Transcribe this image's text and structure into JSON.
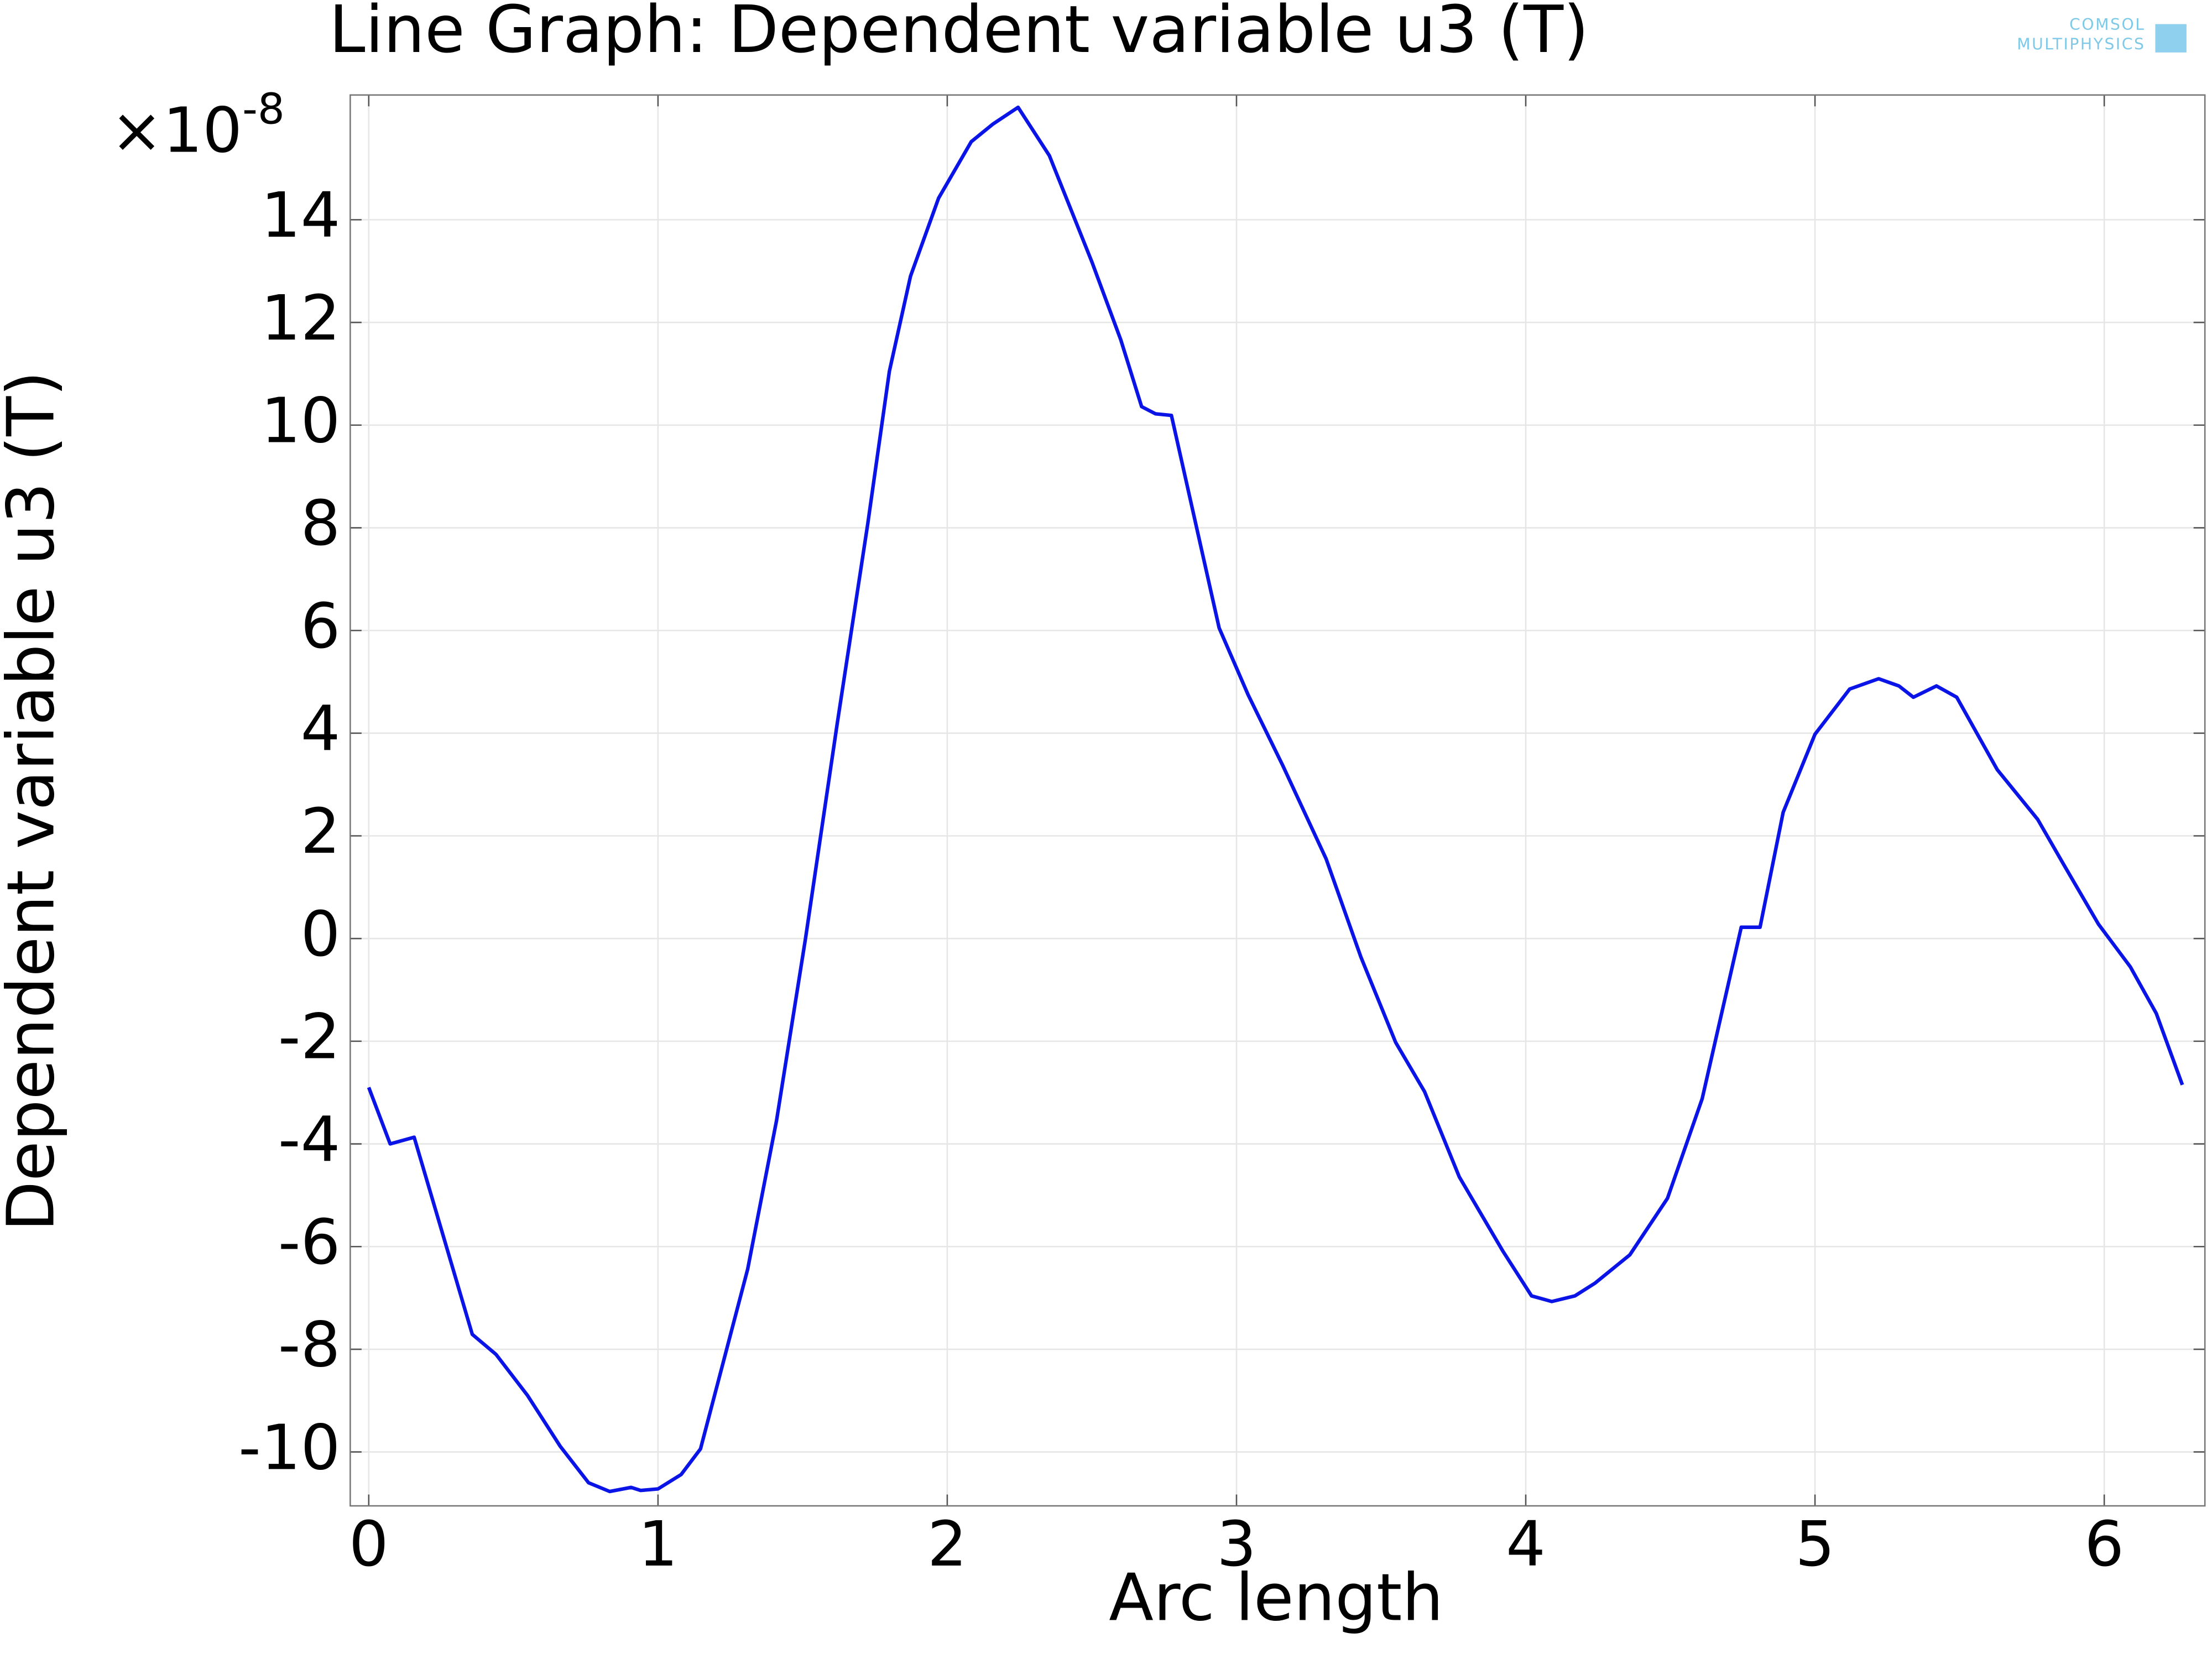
{
  "chart_data": {
    "type": "line",
    "title": "Line Graph: Dependent variable u3 (T)",
    "logo": {
      "line1": "COMSOL",
      "line2": "MULTIPHYSICS"
    },
    "x_label": "Arc length",
    "y_label": "Dependent variable u3 (T)",
    "y_multiplier": {
      "base": "×10",
      "exponent": "-8"
    },
    "x": [
      0,
      0.074,
      0.157,
      0.358,
      0.44,
      0.549,
      0.662,
      0.76,
      0.833,
      0.907,
      0.94,
      1.0,
      1.08,
      1.147,
      1.31,
      1.41,
      1.51,
      1.62,
      1.725,
      1.8,
      1.873,
      1.97,
      2.083,
      2.157,
      2.245,
      2.353,
      2.5,
      2.6,
      2.672,
      2.72,
      2.775,
      2.94,
      3.04,
      3.16,
      3.31,
      3.43,
      3.55,
      3.65,
      3.77,
      3.92,
      4.02,
      4.09,
      4.17,
      4.24,
      4.36,
      4.49,
      4.61,
      4.745,
      4.81,
      4.89,
      5.0,
      5.12,
      5.22,
      5.29,
      5.34,
      5.42,
      5.49,
      5.63,
      5.77,
      5.86,
      5.98,
      6.09,
      6.18,
      6.27
    ],
    "series": [
      {
        "name": "u3",
        "color": "#0a14e6",
        "values": [
          -2.9,
          -4.0,
          -3.87,
          -7.71,
          -8.1,
          -8.9,
          -9.89,
          -10.6,
          -10.77,
          -10.69,
          -10.75,
          -10.72,
          -10.44,
          -9.94,
          -6.44,
          -3.54,
          0,
          4.2,
          8.07,
          11.05,
          12.9,
          14.42,
          15.52,
          15.86,
          16.19,
          15.25,
          13.18,
          11.66,
          10.36,
          10.22,
          10.19,
          6.05,
          4.75,
          3.37,
          1.55,
          -0.36,
          -2.02,
          -2.98,
          -4.64,
          -6.08,
          -6.96,
          -7.07,
          -6.96,
          -6.71,
          -6.16,
          -5.06,
          -3.12,
          0.22,
          0.22,
          2.46,
          3.98,
          4.86,
          5.06,
          4.92,
          4.7,
          4.92,
          4.7,
          3.29,
          2.32,
          1.44,
          0.28,
          -0.55,
          -1.46,
          -2.85
        ]
      }
    ],
    "xlim": [
      -0.064,
      6.348
    ],
    "xticks": [
      0,
      1,
      2,
      3,
      4,
      5,
      6
    ],
    "ylim": [
      -11.05,
      16.43
    ],
    "yticks": [
      -10,
      -8,
      -6,
      -4,
      -2,
      0,
      2,
      4,
      6,
      8,
      10,
      12,
      14
    ],
    "grid": true
  }
}
